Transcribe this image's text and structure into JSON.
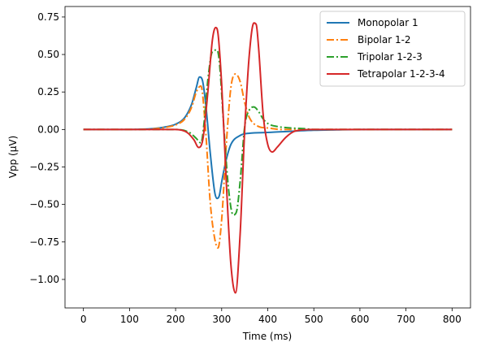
{
  "chart_data": {
    "type": "line",
    "title": "",
    "xlabel": "Time (ms)",
    "ylabel": "Vpp (μV)",
    "xlim": [
      -40,
      840
    ],
    "ylim": [
      -1.19,
      0.82
    ],
    "x_ticks": [
      0,
      100,
      200,
      300,
      400,
      500,
      600,
      700,
      800
    ],
    "x_tick_labels": [
      "0",
      "100",
      "200",
      "300",
      "400",
      "500",
      "600",
      "700",
      "800"
    ],
    "y_ticks": [
      0.75,
      0.5,
      0.25,
      0.0,
      -0.25,
      -0.5,
      -0.75,
      -1.0
    ],
    "y_tick_labels": [
      "0.75",
      "0.50",
      "0.25",
      "0.00",
      "−0.25",
      "−0.50",
      "−0.75",
      "−1.00"
    ],
    "grid": false,
    "legend_position": "top-right",
    "series": [
      {
        "name": "Monopolar 1",
        "color": "#1f77b4",
        "style": "solid",
        "x": [
          0,
          100,
          150,
          180,
          200,
          220,
          235,
          245,
          252,
          258,
          265,
          275,
          285,
          290,
          295,
          300,
          310,
          320,
          340,
          360,
          400,
          450,
          500,
          550,
          600,
          700,
          800
        ],
        "y": [
          0,
          0,
          0.005,
          0.018,
          0.035,
          0.08,
          0.17,
          0.28,
          0.35,
          0.33,
          0.18,
          -0.15,
          -0.42,
          -0.46,
          -0.44,
          -0.35,
          -0.2,
          -0.1,
          -0.04,
          -0.025,
          -0.02,
          -0.012,
          -0.005,
          -0.002,
          0,
          0,
          0
        ]
      },
      {
        "name": "Bipolar 1-2",
        "color": "#ff7f0e",
        "style": "dashdot",
        "x": [
          0,
          100,
          150,
          180,
          200,
          220,
          235,
          245,
          255,
          265,
          275,
          285,
          292,
          300,
          310,
          320,
          330,
          340,
          350,
          360,
          380,
          400,
          430,
          450,
          500,
          600,
          800
        ],
        "y": [
          0,
          0,
          0.003,
          0.015,
          0.03,
          0.07,
          0.15,
          0.25,
          0.29,
          0.0,
          -0.48,
          -0.73,
          -0.79,
          -0.6,
          -0.1,
          0.28,
          0.37,
          0.32,
          0.18,
          0.08,
          0.02,
          0.01,
          0.0,
          0.0,
          0,
          0,
          0
        ]
      },
      {
        "name": "Tripolar 1-2-3",
        "color": "#2ca02c",
        "style": "dashdot",
        "x": [
          0,
          150,
          200,
          230,
          245,
          255,
          262,
          270,
          280,
          290,
          295,
          305,
          315,
          325,
          332,
          340,
          350,
          360,
          370,
          380,
          390,
          400,
          420,
          450,
          480,
          500,
          600,
          800
        ],
        "y": [
          0,
          0,
          0.0,
          -0.02,
          -0.06,
          -0.09,
          0.05,
          0.33,
          0.52,
          0.53,
          0.45,
          0.0,
          -0.4,
          -0.57,
          -0.55,
          -0.35,
          0.02,
          0.13,
          0.15,
          0.12,
          0.07,
          0.04,
          0.02,
          0.01,
          0.005,
          0,
          0,
          0
        ]
      },
      {
        "name": "Tetrapolar 1-2-3-4",
        "color": "#d62728",
        "style": "solid",
        "x": [
          0,
          150,
          200,
          225,
          240,
          250,
          255,
          260,
          270,
          280,
          287,
          292,
          300,
          310,
          320,
          330,
          340,
          350,
          360,
          370,
          375,
          380,
          390,
          400,
          410,
          420,
          440,
          460,
          500,
          600,
          800
        ],
        "y": [
          0,
          0,
          0.0,
          -0.02,
          -0.07,
          -0.12,
          -0.11,
          -0.05,
          0.25,
          0.6,
          0.68,
          0.64,
          0.3,
          -0.35,
          -0.9,
          -1.09,
          -0.7,
          0.0,
          0.5,
          0.71,
          0.7,
          0.55,
          0.1,
          -0.1,
          -0.15,
          -0.12,
          -0.05,
          -0.01,
          0,
          0,
          0
        ]
      }
    ]
  }
}
